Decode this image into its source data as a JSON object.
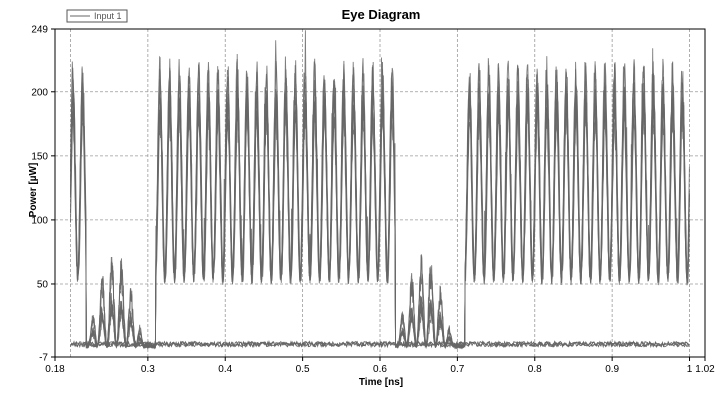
{
  "chart_data": {
    "type": "line",
    "title": "Eye Diagram",
    "xlabel": "Time [ns]",
    "ylabel": "Power [µW]",
    "xlim": [
      0.18,
      1.02
    ],
    "ylim": [
      -7,
      249
    ],
    "x_ticks": [
      0.18,
      0.3,
      0.4,
      0.5,
      0.6,
      0.7,
      0.8,
      0.9,
      1,
      1.02
    ],
    "x_tick_labels": [
      "0.18",
      "0.3",
      "0.4",
      "0.5",
      "0.6",
      "0.7",
      "0.8",
      "0.9",
      "1",
      "1.02"
    ],
    "y_ticks": [
      -7,
      50,
      100,
      150,
      200,
      249
    ],
    "y_tick_labels": [
      "-7",
      "50",
      "100",
      "150",
      "200",
      "249"
    ],
    "grid": true,
    "legend_position": "top-left",
    "series": [
      {
        "name": "Input 1",
        "color": "#666666",
        "carrier_period_ns": 0.0125,
        "x_range": [
          0.2,
          1.0
        ],
        "peak_level_uW": 195,
        "trough_level_uW": 55,
        "bottom_rail_uW": 0,
        "rise_level_uW": 75,
        "low_power_windows_ns": [
          [
            0.22,
            0.31
          ],
          [
            0.62,
            0.71
          ]
        ]
      }
    ],
    "colors": {
      "trace": "#666666",
      "grid": "#9a9a9a",
      "axis": "#000000"
    }
  }
}
